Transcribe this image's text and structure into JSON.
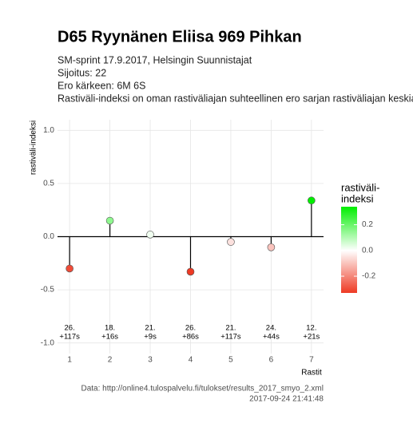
{
  "chart_data": {
    "type": "lollipop",
    "title": "D65 Ryynänen Eliisa 969 Pihkan",
    "subtitle": [
      "SM-sprint 17.9.2017, Helsingin Suunnistajat",
      "Sijoitus: 22",
      "Ero kärkeen: 6M 6S",
      "Rastiväli-indeksi on oman rastiväliajan suhteellinen ero sarjan rastiväliajan keskiarvoon"
    ],
    "x": [
      1,
      2,
      3,
      4,
      5,
      6,
      7
    ],
    "series": [
      {
        "name": "rastiväli-indeksi",
        "values": [
          -0.3,
          0.15,
          0.02,
          -0.33,
          -0.05,
          -0.1,
          0.34
        ]
      }
    ],
    "point_labels": [
      [
        "26.",
        "+117s"
      ],
      [
        "18.",
        "+16s"
      ],
      [
        "21.",
        "+9s"
      ],
      [
        "26.",
        "+86s"
      ],
      [
        "21.",
        "+117s"
      ],
      [
        "24.",
        "+44s"
      ],
      [
        "12.",
        "+21s"
      ]
    ],
    "xlabel": "Rastit",
    "ylabel": "rastiväli-indeksi",
    "xlim": [
      0.7,
      7.3
    ],
    "xticks": [
      1,
      2,
      3,
      4,
      5,
      6,
      7
    ],
    "ylim": [
      -1.1,
      1.1
    ],
    "yticks": [
      {
        "value": -1,
        "label": "-1.0"
      },
      -0.5,
      {
        "value": 0,
        "label": "0.0"
      },
      0.5,
      {
        "value": 1,
        "label": "1.0"
      }
    ],
    "grid": true,
    "legend": {
      "title": [
        "rastiväli-",
        "indeksi"
      ],
      "ticks": [
        -0.2,
        {
          "value": 0,
          "label": "0.0"
        },
        0.2
      ],
      "colors": {
        "low": "#ee3a24",
        "mid": "#ffffff",
        "high": "#00ee00"
      }
    },
    "caption": [
      "Data: http://online4.tulospalvelu.fi/tulokset/results_2017_smyo_2.xml",
      "2017-09-24 21:41:48"
    ]
  }
}
